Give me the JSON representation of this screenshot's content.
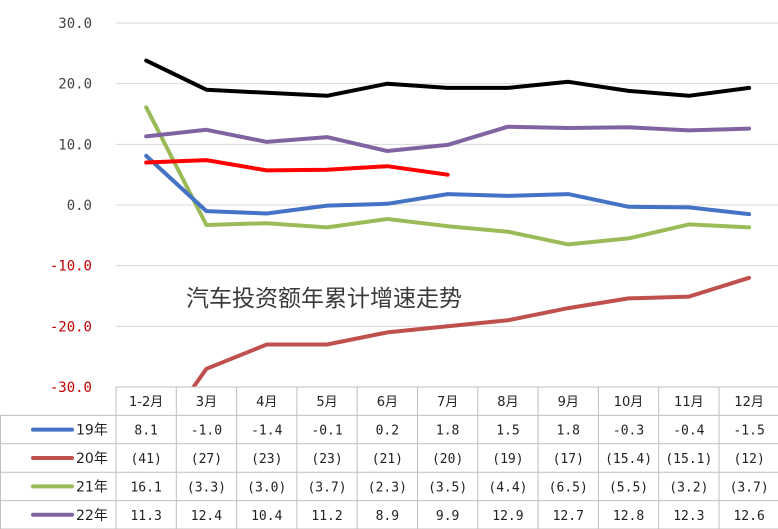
{
  "chart_data": {
    "type": "line",
    "title": "汽车投资额年累计增速走势",
    "categories": [
      "1-2月",
      "3月",
      "4月",
      "5月",
      "6月",
      "7月",
      "8月",
      "9月",
      "10月",
      "11月",
      "12月"
    ],
    "ylim": [
      -30,
      30
    ],
    "yticks": [
      "30.0",
      "20.0",
      "10.0",
      "0.0",
      "-10.0",
      "-20.0",
      "-30.0"
    ],
    "grid": true,
    "series": [
      {
        "name": "19年",
        "color": "#4472c4",
        "values": [
          8.1,
          -1.0,
          -1.4,
          -0.1,
          0.2,
          1.8,
          1.5,
          1.8,
          -0.3,
          -0.4,
          -1.5
        ],
        "labels": [
          "8.1",
          "-1.0",
          "-1.4",
          "-0.1",
          "0.2",
          "1.8",
          "1.5",
          "1.8",
          "-0.3",
          "-0.4",
          "-1.5"
        ]
      },
      {
        "name": "20年",
        "color": "#c0504d",
        "values": [
          -41,
          -27,
          -23,
          -23,
          -21,
          -20,
          -19,
          -17,
          -15.4,
          -15.1,
          -12
        ],
        "labels": [
          "(41)",
          "(27)",
          "(23)",
          "(23)",
          "(21)",
          "(20)",
          "(19)",
          "(17)",
          "(15.4)",
          "(15.1)",
          "(12)"
        ]
      },
      {
        "name": "21年",
        "color": "#9bbb59",
        "values": [
          16.1,
          -3.3,
          -3.0,
          -3.7,
          -2.3,
          -3.5,
          -4.4,
          -6.5,
          -5.5,
          -3.2,
          -3.7
        ],
        "labels": [
          "16.1",
          "(3.3)",
          "(3.0)",
          "(3.7)",
          "(2.3)",
          "(3.5)",
          "(4.4)",
          "(6.5)",
          "(5.5)",
          "(3.2)",
          "(3.7)"
        ]
      },
      {
        "name": "22年",
        "color": "#8064a2",
        "values": [
          11.3,
          12.4,
          10.4,
          11.2,
          8.9,
          9.9,
          12.9,
          12.7,
          12.8,
          12.3,
          12.6
        ],
        "labels": [
          "11.3",
          "12.4",
          "10.4",
          "11.2",
          "8.9",
          "9.9",
          "12.9",
          "12.7",
          "12.8",
          "12.3",
          "12.6"
        ]
      }
    ],
    "extra_series": [
      {
        "color": "#000000",
        "values": [
          23.8,
          19.0,
          18.5,
          18.0,
          20.0,
          19.3,
          19.3,
          20.3,
          18.8,
          18.0,
          19.3
        ]
      },
      {
        "color": "#ff0000",
        "values": [
          7.0,
          7.4,
          5.7,
          5.8,
          6.4,
          5.0
        ]
      }
    ]
  },
  "colors": {
    "negative_tick": "#c00000",
    "positive_tick": "#444444",
    "grid": "#d9d9d9",
    "table_border": "#bfbfbf"
  }
}
